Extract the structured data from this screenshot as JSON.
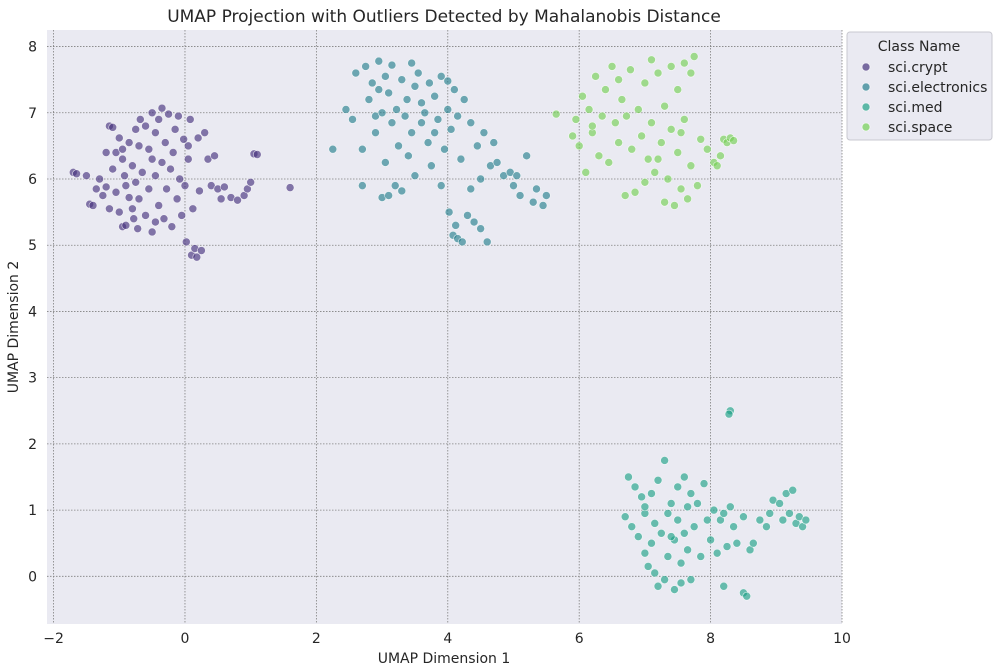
{
  "chart_data": {
    "type": "scatter",
    "title": "UMAP Projection with Outliers Detected by Mahalanobis Distance",
    "xlabel": "UMAP Dimension 1",
    "ylabel": "UMAP Dimension 2",
    "xlim": [
      -2.1,
      10.0
    ],
    "ylim": [
      -0.72,
      8.25
    ],
    "xticks": [
      -2,
      0,
      2,
      4,
      6,
      8,
      10
    ],
    "yticks": [
      0,
      1,
      2,
      3,
      4,
      5,
      6,
      7,
      8
    ],
    "xtick_labels": [
      "−2",
      "0",
      "2",
      "4",
      "6",
      "8",
      "10"
    ],
    "ytick_labels": [
      "0",
      "1",
      "2",
      "3",
      "4",
      "5",
      "6",
      "7",
      "8"
    ],
    "grid": true,
    "legend": {
      "title": "Class Name",
      "placement": "outside-top-right",
      "entries": [
        "sci.crypt",
        "sci.electronics",
        "sci.med",
        "sci.space"
      ]
    },
    "colors": {
      "sci.crypt": "#46337e",
      "sci.electronics": "#277f8e",
      "sci.med": "#1fa187",
      "sci.space": "#74d055",
      "background": "#eaeaf2",
      "grid": "#808080"
    },
    "series": [
      {
        "name": "sci.crypt",
        "points": [
          [
            -1.7,
            6.1
          ],
          [
            -1.65,
            6.08
          ],
          [
            -1.5,
            6.05
          ],
          [
            -1.45,
            5.62
          ],
          [
            -1.4,
            5.6
          ],
          [
            -1.35,
            5.85
          ],
          [
            -1.3,
            6.0
          ],
          [
            -1.25,
            5.75
          ],
          [
            -1.2,
            6.4
          ],
          [
            -1.2,
            5.88
          ],
          [
            -1.15,
            6.8
          ],
          [
            -1.15,
            5.55
          ],
          [
            -1.1,
            6.78
          ],
          [
            -1.1,
            6.15
          ],
          [
            -1.05,
            6.4
          ],
          [
            -1.05,
            5.8
          ],
          [
            -1.0,
            6.62
          ],
          [
            -1.0,
            5.5
          ],
          [
            -0.95,
            6.3
          ],
          [
            -0.95,
            5.28
          ],
          [
            -0.92,
            6.05
          ],
          [
            -0.9,
            5.9
          ],
          [
            -0.9,
            5.3
          ],
          [
            -0.85,
            6.55
          ],
          [
            -0.85,
            5.72
          ],
          [
            -0.8,
            6.2
          ],
          [
            -0.8,
            5.55
          ],
          [
            -0.78,
            5.4
          ],
          [
            -0.75,
            6.75
          ],
          [
            -0.75,
            5.95
          ],
          [
            -0.72,
            5.25
          ],
          [
            -0.7,
            6.5
          ],
          [
            -0.7,
            5.7
          ],
          [
            -0.68,
            6.9
          ],
          [
            -0.65,
            6.1
          ],
          [
            -0.6,
            6.8
          ],
          [
            -0.6,
            5.45
          ],
          [
            -0.55,
            6.45
          ],
          [
            -0.55,
            5.85
          ],
          [
            -0.5,
            7.0
          ],
          [
            -0.5,
            6.3
          ],
          [
            -0.5,
            5.2
          ],
          [
            -0.45,
            6.7
          ],
          [
            -0.45,
            6.05
          ],
          [
            -0.4,
            6.9
          ],
          [
            -0.4,
            5.6
          ],
          [
            -0.35,
            7.07
          ],
          [
            -0.35,
            6.25
          ],
          [
            -0.32,
            5.4
          ],
          [
            -0.3,
            6.55
          ],
          [
            -0.28,
            5.85
          ],
          [
            -0.25,
            6.98
          ],
          [
            -0.22,
            6.15
          ],
          [
            -0.2,
            5.28
          ],
          [
            -0.18,
            6.4
          ],
          [
            -0.15,
            6.75
          ],
          [
            -0.12,
            5.7
          ],
          [
            -0.1,
            6.95
          ],
          [
            -0.08,
            6.0
          ],
          [
            -0.05,
            5.45
          ],
          [
            -0.02,
            6.6
          ],
          [
            0.0,
            5.9
          ],
          [
            0.02,
            5.05
          ],
          [
            0.05,
            6.3
          ],
          [
            0.08,
            6.9
          ],
          [
            0.1,
            4.85
          ],
          [
            0.12,
            5.55
          ],
          [
            0.15,
            4.95
          ],
          [
            0.18,
            4.82
          ],
          [
            0.2,
            6.62
          ],
          [
            0.22,
            5.82
          ],
          [
            0.25,
            4.92
          ],
          [
            0.3,
            6.7
          ],
          [
            0.35,
            6.3
          ],
          [
            0.4,
            5.9
          ],
          [
            0.45,
            6.35
          ],
          [
            0.5,
            5.85
          ],
          [
            0.55,
            5.7
          ],
          [
            0.6,
            5.88
          ],
          [
            0.7,
            5.72
          ],
          [
            0.8,
            5.68
          ],
          [
            0.9,
            5.75
          ],
          [
            0.95,
            5.85
          ],
          [
            1.0,
            5.95
          ],
          [
            1.05,
            6.38
          ],
          [
            1.1,
            6.37
          ],
          [
            1.6,
            5.87
          ],
          [
            -0.95,
            6.45
          ],
          [
            -0.45,
            5.35
          ],
          [
            0.05,
            6.5
          ]
        ]
      },
      {
        "name": "sci.electronics",
        "points": [
          [
            2.25,
            6.45
          ],
          [
            2.45,
            7.05
          ],
          [
            2.55,
            6.9
          ],
          [
            2.6,
            7.6
          ],
          [
            2.7,
            6.45
          ],
          [
            2.7,
            5.9
          ],
          [
            2.75,
            7.7
          ],
          [
            2.8,
            7.2
          ],
          [
            2.85,
            7.45
          ],
          [
            2.9,
            6.7
          ],
          [
            2.9,
            6.95
          ],
          [
            2.95,
            7.78
          ],
          [
            3.0,
            7.0
          ],
          [
            3.0,
            5.72
          ],
          [
            3.05,
            6.25
          ],
          [
            3.05,
            7.55
          ],
          [
            3.1,
            7.3
          ],
          [
            3.1,
            5.75
          ],
          [
            3.15,
            6.85
          ],
          [
            3.15,
            7.72
          ],
          [
            3.2,
            5.9
          ],
          [
            3.22,
            7.05
          ],
          [
            3.25,
            6.5
          ],
          [
            3.3,
            7.5
          ],
          [
            3.3,
            5.82
          ],
          [
            3.35,
            6.95
          ],
          [
            3.38,
            7.2
          ],
          [
            3.4,
            6.35
          ],
          [
            3.45,
            7.75
          ],
          [
            3.45,
            6.7
          ],
          [
            3.5,
            7.4
          ],
          [
            3.5,
            6.05
          ],
          [
            3.55,
            7.6
          ],
          [
            3.6,
            6.85
          ],
          [
            3.65,
            7.0
          ],
          [
            3.7,
            6.55
          ],
          [
            3.72,
            7.45
          ],
          [
            3.75,
            6.2
          ],
          [
            3.8,
            7.25
          ],
          [
            3.85,
            6.9
          ],
          [
            3.9,
            7.55
          ],
          [
            3.9,
            5.9
          ],
          [
            3.95,
            6.45
          ],
          [
            4.0,
            7.48
          ],
          [
            4.0,
            7.05
          ],
          [
            4.02,
            5.5
          ],
          [
            4.05,
            6.75
          ],
          [
            4.08,
            5.15
          ],
          [
            4.1,
            7.35
          ],
          [
            4.12,
            5.3
          ],
          [
            4.15,
            6.95
          ],
          [
            4.15,
            5.1
          ],
          [
            4.2,
            6.3
          ],
          [
            4.22,
            5.05
          ],
          [
            4.25,
            7.2
          ],
          [
            4.3,
            5.45
          ],
          [
            4.35,
            6.85
          ],
          [
            4.4,
            5.35
          ],
          [
            4.45,
            6.5
          ],
          [
            4.5,
            5.25
          ],
          [
            4.55,
            6.7
          ],
          [
            4.6,
            5.05
          ],
          [
            4.65,
            6.2
          ],
          [
            4.7,
            6.55
          ],
          [
            4.75,
            6.25
          ],
          [
            4.85,
            6.05
          ],
          [
            4.95,
            6.1
          ],
          [
            5.0,
            5.9
          ],
          [
            5.05,
            6.05
          ],
          [
            5.1,
            5.75
          ],
          [
            5.2,
            6.35
          ],
          [
            5.3,
            5.65
          ],
          [
            5.35,
            5.85
          ],
          [
            5.45,
            5.6
          ],
          [
            5.5,
            5.75
          ],
          [
            4.35,
            5.85
          ],
          [
            4.5,
            6.0
          ],
          [
            3.6,
            7.15
          ],
          [
            2.95,
            7.35
          ],
          [
            3.8,
            6.7
          ]
        ]
      },
      {
        "name": "sci.med",
        "points": [
          [
            6.75,
            1.5
          ],
          [
            6.7,
            0.9
          ],
          [
            6.8,
            0.75
          ],
          [
            6.85,
            1.35
          ],
          [
            6.9,
            0.6
          ],
          [
            6.95,
            1.2
          ],
          [
            7.0,
            0.95
          ],
          [
            7.0,
            0.35
          ],
          [
            7.05,
            0.15
          ],
          [
            7.1,
            0.5
          ],
          [
            7.1,
            1.25
          ],
          [
            7.15,
            0.05
          ],
          [
            7.15,
            0.8
          ],
          [
            7.2,
            -0.15
          ],
          [
            7.2,
            1.45
          ],
          [
            7.25,
            0.65
          ],
          [
            7.3,
            -0.05
          ],
          [
            7.3,
            1.75
          ],
          [
            7.35,
            0.95
          ],
          [
            7.35,
            0.3
          ],
          [
            7.4,
            1.1
          ],
          [
            7.45,
            -0.2
          ],
          [
            7.45,
            0.55
          ],
          [
            7.5,
            1.35
          ],
          [
            7.5,
            0.85
          ],
          [
            7.55,
            -0.1
          ],
          [
            7.55,
            0.2
          ],
          [
            7.6,
            1.5
          ],
          [
            7.6,
            0.65
          ],
          [
            7.65,
            1.05
          ],
          [
            7.65,
            0.4
          ],
          [
            7.7,
            1.25
          ],
          [
            7.7,
            -0.05
          ],
          [
            7.75,
            0.75
          ],
          [
            7.8,
            1.1
          ],
          [
            7.85,
            0.3
          ],
          [
            7.9,
            1.4
          ],
          [
            7.95,
            0.85
          ],
          [
            8.0,
            0.55
          ],
          [
            8.05,
            1.0
          ],
          [
            8.1,
            0.35
          ],
          [
            8.15,
            0.85
          ],
          [
            8.2,
            -0.15
          ],
          [
            8.2,
            0.95
          ],
          [
            8.25,
            0.45
          ],
          [
            8.3,
            2.5
          ],
          [
            8.28,
            2.45
          ],
          [
            8.3,
            1.05
          ],
          [
            8.35,
            0.75
          ],
          [
            8.4,
            0.5
          ],
          [
            8.5,
            0.9
          ],
          [
            8.5,
            -0.25
          ],
          [
            8.55,
            -0.3
          ],
          [
            8.6,
            0.4
          ],
          [
            8.65,
            0.5
          ],
          [
            8.75,
            0.85
          ],
          [
            8.85,
            0.75
          ],
          [
            8.95,
            1.15
          ],
          [
            9.05,
            1.1
          ],
          [
            9.1,
            0.85
          ],
          [
            9.15,
            1.25
          ],
          [
            9.2,
            0.95
          ],
          [
            9.25,
            1.3
          ],
          [
            9.3,
            0.8
          ],
          [
            9.35,
            0.9
          ],
          [
            9.4,
            0.75
          ],
          [
            9.45,
            0.85
          ],
          [
            8.9,
            0.95
          ],
          [
            7.0,
            1.05
          ],
          [
            7.4,
            0.6
          ]
        ]
      },
      {
        "name": "sci.space",
        "points": [
          [
            5.65,
            6.98
          ],
          [
            5.9,
            6.65
          ],
          [
            5.95,
            6.9
          ],
          [
            6.0,
            6.5
          ],
          [
            6.05,
            7.25
          ],
          [
            6.1,
            6.1
          ],
          [
            6.15,
            7.05
          ],
          [
            6.2,
            6.7
          ],
          [
            6.25,
            7.55
          ],
          [
            6.3,
            6.35
          ],
          [
            6.35,
            6.95
          ],
          [
            6.4,
            7.35
          ],
          [
            6.45,
            6.25
          ],
          [
            6.5,
            7.7
          ],
          [
            6.55,
            6.85
          ],
          [
            6.6,
            6.55
          ],
          [
            6.65,
            7.2
          ],
          [
            6.7,
            5.75
          ],
          [
            6.72,
            6.95
          ],
          [
            6.78,
            7.65
          ],
          [
            6.8,
            6.45
          ],
          [
            6.85,
            5.8
          ],
          [
            6.9,
            7.05
          ],
          [
            6.95,
            6.65
          ],
          [
            7.0,
            7.45
          ],
          [
            7.0,
            5.95
          ],
          [
            7.05,
            6.3
          ],
          [
            7.1,
            7.8
          ],
          [
            7.1,
            6.85
          ],
          [
            7.15,
            6.1
          ],
          [
            7.2,
            7.6
          ],
          [
            7.25,
            6.55
          ],
          [
            7.3,
            5.65
          ],
          [
            7.3,
            7.1
          ],
          [
            7.35,
            6.0
          ],
          [
            7.4,
            7.7
          ],
          [
            7.4,
            6.75
          ],
          [
            7.45,
            5.6
          ],
          [
            7.5,
            7.35
          ],
          [
            7.5,
            6.4
          ],
          [
            7.55,
            5.85
          ],
          [
            7.6,
            7.75
          ],
          [
            7.6,
            6.9
          ],
          [
            7.65,
            5.7
          ],
          [
            7.7,
            7.6
          ],
          [
            7.7,
            6.2
          ],
          [
            7.75,
            7.85
          ],
          [
            7.8,
            5.9
          ],
          [
            7.85,
            6.6
          ],
          [
            7.95,
            6.45
          ],
          [
            8.05,
            6.25
          ],
          [
            8.1,
            6.2
          ],
          [
            8.15,
            6.35
          ],
          [
            8.2,
            6.6
          ],
          [
            8.25,
            6.55
          ],
          [
            8.3,
            6.62
          ],
          [
            8.35,
            6.58
          ],
          [
            6.2,
            6.8
          ],
          [
            6.6,
            7.5
          ],
          [
            7.2,
            6.3
          ],
          [
            7.55,
            6.7
          ]
        ]
      }
    ]
  }
}
